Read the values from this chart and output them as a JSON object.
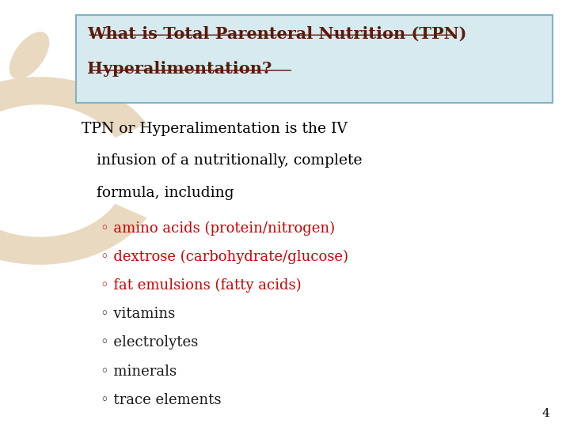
{
  "title_line1": "What is Total Parenteral Nutrition (TPN)",
  "title_line2": "Hyperalimentation?",
  "title_color": "#5B1A0A",
  "title_bg_color": "#D6EAF0",
  "title_border_color": "#7FB3C8",
  "body_color": "#000000",
  "bullet_items": [
    "amino acids (protein/nitrogen)",
    "dextrose (carbohydrate/glucose)",
    "fat emulsions (fatty acids)",
    "vitamins",
    "electrolytes",
    "minerals",
    "trace elements"
  ],
  "bullet_colors": [
    "#CC0000",
    "#CC0000",
    "#CC0000",
    "#1A1A1A",
    "#1A1A1A",
    "#1A1A1A",
    "#1A1A1A"
  ],
  "bg_color": "#FFFFFF",
  "watermark_color": "#E8D9C0",
  "page_number": "4",
  "page_number_color": "#000000"
}
